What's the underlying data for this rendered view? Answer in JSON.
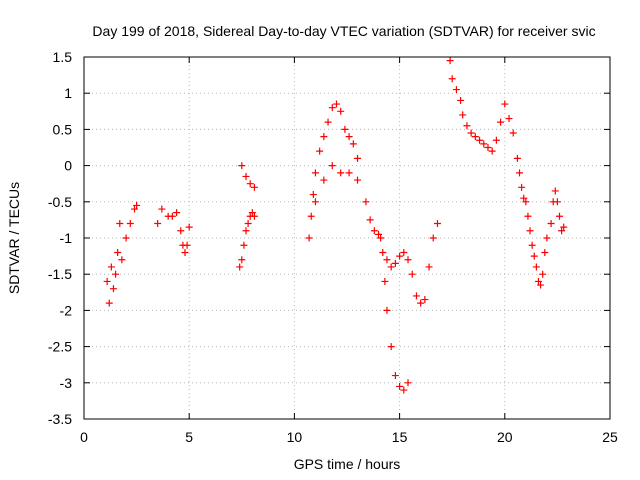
{
  "chart_data": {
    "type": "scatter",
    "title": "Day 199 of 2018, Sidereal Day-to-day VTEC variation (SDTVAR) for receiver svic",
    "xlabel": "GPS time / hours",
    "ylabel": "SDTVAR / TECUs",
    "xlim": [
      0,
      25
    ],
    "ylim": [
      -3.5,
      1.5
    ],
    "x_ticks": [
      0,
      5,
      10,
      15,
      20,
      25
    ],
    "x_tick_labels": [
      "0",
      "5",
      "10",
      "15",
      "20",
      "25"
    ],
    "y_ticks": [
      -3.5,
      -3,
      -2.5,
      -2,
      -1.5,
      -1,
      -0.5,
      0,
      0.5,
      1,
      1.5
    ],
    "y_tick_labels": [
      "-3.5",
      "-3",
      "-2.5",
      "-2",
      "-1.5",
      "-1",
      "-0.5",
      "0",
      "0.5",
      "1",
      "1.5"
    ],
    "grid": true,
    "marker": "+",
    "color": "#ff0000",
    "series": [
      {
        "name": "SDTVAR",
        "x": [
          1.1,
          1.2,
          1.3,
          1.4,
          1.5,
          1.6,
          1.7,
          1.8,
          2.0,
          2.2,
          2.4,
          2.5,
          3.5,
          3.7,
          4.0,
          4.2,
          4.4,
          4.6,
          4.7,
          4.8,
          4.9,
          5.0,
          7.4,
          7.5,
          7.6,
          7.7,
          7.8,
          7.9,
          8.0,
          8.1,
          7.5,
          7.7,
          7.9,
          8.1,
          10.7,
          10.8,
          10.9,
          11.0,
          11.2,
          11.4,
          11.6,
          11.8,
          12.0,
          12.2,
          12.4,
          12.6,
          12.8,
          13.0,
          11.0,
          11.4,
          11.8,
          12.2,
          12.6,
          13.0,
          13.4,
          13.6,
          13.8,
          14.0,
          14.1,
          14.2,
          14.3,
          14.4,
          14.6,
          14.8,
          15.0,
          15.2,
          15.4,
          14.4,
          14.6,
          14.8,
          15.0,
          15.2,
          15.4,
          15.6,
          15.8,
          16.0,
          16.2,
          16.4,
          16.6,
          16.8,
          17.4,
          17.5,
          17.7,
          17.9,
          18.0,
          18.2,
          18.4,
          18.6,
          18.8,
          19.0,
          19.2,
          19.4,
          19.6,
          19.8,
          20.0,
          20.2,
          20.4,
          20.6,
          20.7,
          20.8,
          20.9,
          21.0,
          21.1,
          21.2,
          21.3,
          21.4,
          21.5,
          21.6,
          21.7,
          21.8,
          21.9,
          22.0,
          22.2,
          22.3,
          22.4,
          22.5,
          22.6,
          22.7,
          22.8
        ],
        "values": [
          -1.6,
          -1.9,
          -1.4,
          -1.7,
          -1.5,
          -1.2,
          -0.8,
          -1.3,
          -1.0,
          -0.8,
          -0.6,
          -0.55,
          -0.8,
          -0.6,
          -0.7,
          -0.7,
          -0.65,
          -0.9,
          -1.1,
          -1.2,
          -1.1,
          -0.85,
          -1.4,
          -1.3,
          -1.1,
          -0.9,
          -0.8,
          -0.7,
          -0.65,
          -0.7,
          0.0,
          -0.15,
          -0.25,
          -0.3,
          -1.0,
          -0.7,
          -0.4,
          -0.1,
          0.2,
          0.4,
          0.6,
          0.8,
          0.85,
          0.75,
          0.5,
          0.4,
          0.3,
          0.1,
          -0.5,
          -0.2,
          0.0,
          -0.1,
          -0.1,
          -0.2,
          -0.5,
          -0.75,
          -0.9,
          -0.95,
          -1.0,
          -1.2,
          -1.6,
          -2.0,
          -2.5,
          -2.9,
          -3.05,
          -3.1,
          -3.0,
          -1.3,
          -1.4,
          -1.35,
          -1.25,
          -1.2,
          -1.3,
          -1.5,
          -1.8,
          -1.9,
          -1.85,
          -1.4,
          -1.0,
          -0.8,
          1.45,
          1.2,
          1.05,
          0.9,
          0.7,
          0.55,
          0.45,
          0.4,
          0.35,
          0.3,
          0.25,
          0.2,
          0.35,
          0.6,
          0.85,
          0.65,
          0.45,
          0.1,
          -0.1,
          -0.3,
          -0.45,
          -0.5,
          -0.7,
          -0.9,
          -1.1,
          -1.25,
          -1.4,
          -1.6,
          -1.65,
          -1.5,
          -1.2,
          -1.0,
          -0.8,
          -0.5,
          -0.35,
          -0.5,
          -0.7,
          -0.9,
          -0.85
        ]
      }
    ]
  }
}
